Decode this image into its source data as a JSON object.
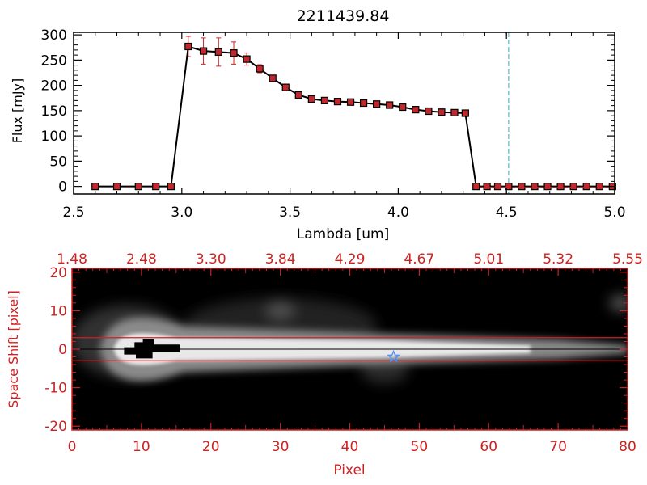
{
  "colors": {
    "axis_black": "#000000",
    "axis_red": "#cc2222",
    "marker": "#c0282d",
    "errorbar": "#cc2222",
    "vline": "#3aa8b8",
    "star": "#4a8cff",
    "background": "#ffffff",
    "image_bg": "#000000"
  },
  "chart_data": [
    {
      "type": "line",
      "title": "2211439.84",
      "xlabel": "Lambda [um]",
      "ylabel": "Flux [mJy]",
      "xlim": [
        2.5,
        5.0
      ],
      "ylim": [
        -15,
        305
      ],
      "xticks": [
        "2.5",
        "3.0",
        "3.5",
        "4.0",
        "4.5",
        "5.0"
      ],
      "xtick_values": [
        2.5,
        3.0,
        3.5,
        4.0,
        4.5,
        5.0
      ],
      "yticks": [
        "0",
        "50",
        "100",
        "150",
        "200",
        "250",
        "300"
      ],
      "ytick_values": [
        0,
        50,
        100,
        150,
        200,
        250,
        300
      ],
      "grid": false,
      "vertical_line_x": 4.51,
      "series": [
        {
          "x": [
            2.6,
            2.7,
            2.8,
            2.88,
            2.95,
            3.03,
            3.1,
            3.17,
            3.24,
            3.3,
            3.36,
            3.42,
            3.48,
            3.54,
            3.6,
            3.66,
            3.72,
            3.78,
            3.84,
            3.9,
            3.96,
            4.02,
            4.08,
            4.14,
            4.2,
            4.26,
            4.31,
            4.36,
            4.41,
            4.46,
            4.51,
            4.57,
            4.63,
            4.69,
            4.75,
            4.81,
            4.87,
            4.93,
            4.99
          ],
          "y": [
            0,
            0,
            0,
            0,
            0,
            277,
            268,
            266,
            264,
            252,
            233,
            214,
            196,
            181,
            173,
            170,
            168,
            167,
            165,
            163,
            161,
            157,
            152,
            149,
            147,
            146,
            145,
            0,
            0,
            0,
            0,
            0,
            0,
            0,
            0,
            0,
            0,
            0,
            0
          ],
          "yerr": [
            0,
            0,
            0,
            0,
            0,
            20,
            26,
            28,
            22,
            12,
            8,
            4,
            4,
            3,
            3,
            3,
            3,
            2,
            2,
            2,
            2,
            2,
            2,
            2,
            2,
            2,
            2,
            0,
            0,
            0,
            0,
            0,
            0,
            0,
            0,
            0,
            0,
            0,
            0
          ]
        }
      ]
    },
    {
      "type": "heatmap",
      "xlabel": "Pixel",
      "ylabel": "Space Shift [pixel]",
      "xlim": [
        0,
        80
      ],
      "ylim": [
        -21,
        21
      ],
      "xticks": [
        "0",
        "10",
        "20",
        "30",
        "40",
        "50",
        "60",
        "70",
        "80"
      ],
      "xtick_values": [
        0,
        10,
        20,
        30,
        40,
        50,
        60,
        70,
        80
      ],
      "yticks": [
        "-20",
        "-10",
        "0",
        "10",
        "20"
      ],
      "ytick_values": [
        -20,
        -10,
        0,
        10,
        20
      ],
      "top_axis_ticks": [
        "1.48",
        "2.48",
        "3.30",
        "3.84",
        "4.29",
        "4.67",
        "5.01",
        "5.32",
        "5.55"
      ],
      "top_axis_tick_positions": [
        0,
        10,
        20,
        30,
        40,
        50,
        60,
        70,
        80
      ],
      "extraction_window": [
        -3,
        3
      ],
      "center_line": 0,
      "star_marker": {
        "x": 46.3,
        "y": -2
      },
      "grid": false
    }
  ]
}
